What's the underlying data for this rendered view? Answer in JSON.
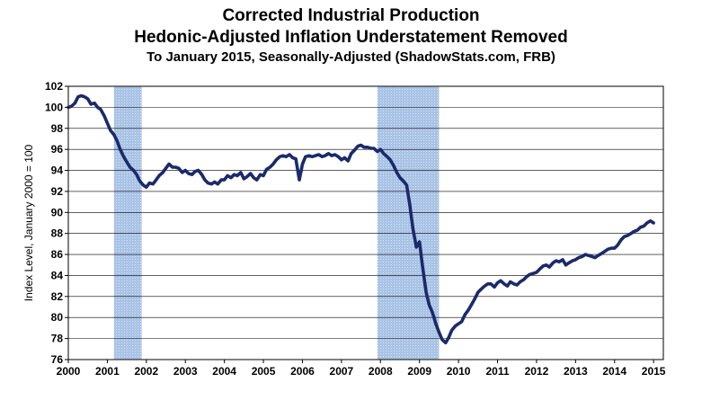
{
  "chart_data": {
    "type": "line",
    "title": "Corrected Industrial Production",
    "title_line2": "Hedonic-Adjusted  Inflation Understatement Removed",
    "subtitle": "To January 2015, Seasonally-Adjusted (ShadowStats.com, FRB)",
    "xlabel": "",
    "ylabel": "Index Level, January 2000 = 100",
    "xlim": [
      2000,
      2015.25
    ],
    "ylim": [
      76,
      102
    ],
    "x_ticks": [
      "2000",
      "2001",
      "2002",
      "2003",
      "2004",
      "2005",
      "2006",
      "2007",
      "2008",
      "2009",
      "2010",
      "2011",
      "2012",
      "2013",
      "2014",
      "2015"
    ],
    "y_ticks": [
      "76",
      "78",
      "80",
      "82",
      "84",
      "86",
      "88",
      "90",
      "92",
      "94",
      "96",
      "98",
      "100",
      "102"
    ],
    "grid": true,
    "legend": "none",
    "line_color": "#1b2a6b",
    "recession_color": "#a9c3e6",
    "recessions": [
      {
        "start": 2001.17,
        "end": 2001.88
      },
      {
        "start": 2007.92,
        "end": 2009.5
      }
    ],
    "series": [
      {
        "x": [
          2000.0,
          2000.08,
          2000.17,
          2000.25,
          2000.33,
          2000.42,
          2000.5,
          2000.58,
          2000.67,
          2000.75,
          2000.83,
          2000.92,
          2001.0,
          2001.08,
          2001.17,
          2001.25,
          2001.33,
          2001.42,
          2001.5,
          2001.58,
          2001.67,
          2001.75,
          2001.83,
          2001.92,
          2002.0,
          2002.08,
          2002.17,
          2002.25,
          2002.33,
          2002.42,
          2002.5,
          2002.58,
          2002.67,
          2002.75,
          2002.83,
          2002.92,
          2003.0,
          2003.08,
          2003.17,
          2003.25,
          2003.33,
          2003.42,
          2003.5,
          2003.58,
          2003.67,
          2003.75,
          2003.83,
          2003.92,
          2004.0,
          2004.08,
          2004.17,
          2004.25,
          2004.33,
          2004.42,
          2004.5,
          2004.58,
          2004.67,
          2004.75,
          2004.83,
          2004.92,
          2005.0,
          2005.08,
          2005.17,
          2005.25,
          2005.33,
          2005.42,
          2005.5,
          2005.58,
          2005.67,
          2005.75,
          2005.83,
          2005.92,
          2006.0,
          2006.08,
          2006.17,
          2006.25,
          2006.33,
          2006.42,
          2006.5,
          2006.58,
          2006.67,
          2006.75,
          2006.83,
          2006.92,
          2007.0,
          2007.08,
          2007.17,
          2007.25,
          2007.33,
          2007.42,
          2007.5,
          2007.58,
          2007.67,
          2007.75,
          2007.83,
          2007.92,
          2008.0,
          2008.08,
          2008.17,
          2008.25,
          2008.33,
          2008.42,
          2008.5,
          2008.58,
          2008.67,
          2008.75,
          2008.83,
          2008.92,
          2009.0,
          2009.08,
          2009.17,
          2009.25,
          2009.33,
          2009.42,
          2009.5,
          2009.58,
          2009.67,
          2009.75,
          2009.83,
          2009.92,
          2010.0,
          2010.08,
          2010.17,
          2010.25,
          2010.33,
          2010.42,
          2010.5,
          2010.58,
          2010.67,
          2010.75,
          2010.83,
          2010.92,
          2011.0,
          2011.08,
          2011.17,
          2011.25,
          2011.33,
          2011.42,
          2011.5,
          2011.58,
          2011.67,
          2011.75,
          2011.83,
          2011.92,
          2012.0,
          2012.08,
          2012.17,
          2012.25,
          2012.33,
          2012.42,
          2012.5,
          2012.58,
          2012.67,
          2012.75,
          2012.83,
          2012.92,
          2013.0,
          2013.08,
          2013.17,
          2013.25,
          2013.33,
          2013.42,
          2013.5,
          2013.58,
          2013.67,
          2013.75,
          2013.83,
          2013.92,
          2014.0,
          2014.08,
          2014.17,
          2014.25,
          2014.33,
          2014.42,
          2014.5,
          2014.58,
          2014.67,
          2014.75,
          2014.83,
          2014.92,
          2015.0
        ],
        "values": [
          100.0,
          100.1,
          100.4,
          101.0,
          101.1,
          101.0,
          100.8,
          100.3,
          100.4,
          100.0,
          99.8,
          99.2,
          98.5,
          97.8,
          97.4,
          96.8,
          96.0,
          95.3,
          94.8,
          94.3,
          94.0,
          93.6,
          93.0,
          92.6,
          92.4,
          92.8,
          92.7,
          93.1,
          93.5,
          93.8,
          94.2,
          94.6,
          94.3,
          94.3,
          94.2,
          93.8,
          94.0,
          93.7,
          93.6,
          93.9,
          94.0,
          93.6,
          93.1,
          92.8,
          92.7,
          92.9,
          92.7,
          93.1,
          93.1,
          93.5,
          93.3,
          93.6,
          93.5,
          93.8,
          93.2,
          93.4,
          93.7,
          93.3,
          93.1,
          93.6,
          93.5,
          94.1,
          94.3,
          94.6,
          95.0,
          95.3,
          95.4,
          95.3,
          95.5,
          95.2,
          95.1,
          93.1,
          94.6,
          95.3,
          95.4,
          95.3,
          95.4,
          95.5,
          95.3,
          95.4,
          95.6,
          95.4,
          95.5,
          95.3,
          95.0,
          95.2,
          94.9,
          95.6,
          95.9,
          96.3,
          96.4,
          96.2,
          96.2,
          96.1,
          96.1,
          95.8,
          96.0,
          95.6,
          95.3,
          95.0,
          94.5,
          93.8,
          93.3,
          93.0,
          92.6,
          90.8,
          88.5,
          86.7,
          87.2,
          84.8,
          82.4,
          81.2,
          80.5,
          79.4,
          78.6,
          77.9,
          77.6,
          78.1,
          78.8,
          79.2,
          79.4,
          79.6,
          80.3,
          80.7,
          81.2,
          81.8,
          82.4,
          82.7,
          83.0,
          83.2,
          83.2,
          82.9,
          83.3,
          83.5,
          83.2,
          83.0,
          83.4,
          83.2,
          83.1,
          83.4,
          83.6,
          83.9,
          84.1,
          84.2,
          84.3,
          84.6,
          84.9,
          85.0,
          84.8,
          85.2,
          85.4,
          85.3,
          85.5,
          85.0,
          85.2,
          85.4,
          85.5,
          85.7,
          85.8,
          86.0,
          85.9,
          85.8,
          85.7,
          85.9,
          86.1,
          86.3,
          86.5,
          86.6,
          86.6,
          86.9,
          87.4,
          87.7,
          87.8,
          88.0,
          88.2,
          88.3,
          88.6,
          88.7,
          89.0,
          89.2,
          89.0
        ]
      }
    ]
  }
}
